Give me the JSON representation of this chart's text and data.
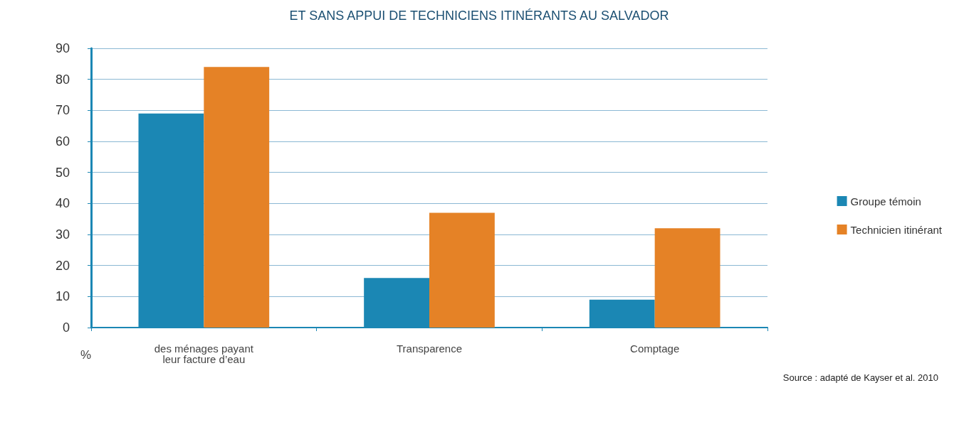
{
  "chart_data": {
    "type": "bar",
    "title": "ET SANS APPUI DE TECHNICIENS ITINÉRANTS AU SALVADOR",
    "ylabel": "%",
    "categories": [
      "des ménages payant\nleur facture d’eau",
      "Transparence",
      "Comptage"
    ],
    "series": [
      {
        "name": "Groupe témoin",
        "color": "#1b87b4",
        "values": [
          69,
          16,
          9
        ]
      },
      {
        "name": "Technicien itinérant",
        "color": "#e58226",
        "values": [
          84,
          37,
          32
        ]
      }
    ],
    "ylim": [
      0,
      90
    ],
    "yticks": [
      0,
      10,
      20,
      30,
      40,
      50,
      60,
      70,
      80,
      90
    ],
    "grid": "y",
    "legend": "right",
    "annotations": [
      "Source : adapté de Kayser et al. 2010"
    ]
  }
}
